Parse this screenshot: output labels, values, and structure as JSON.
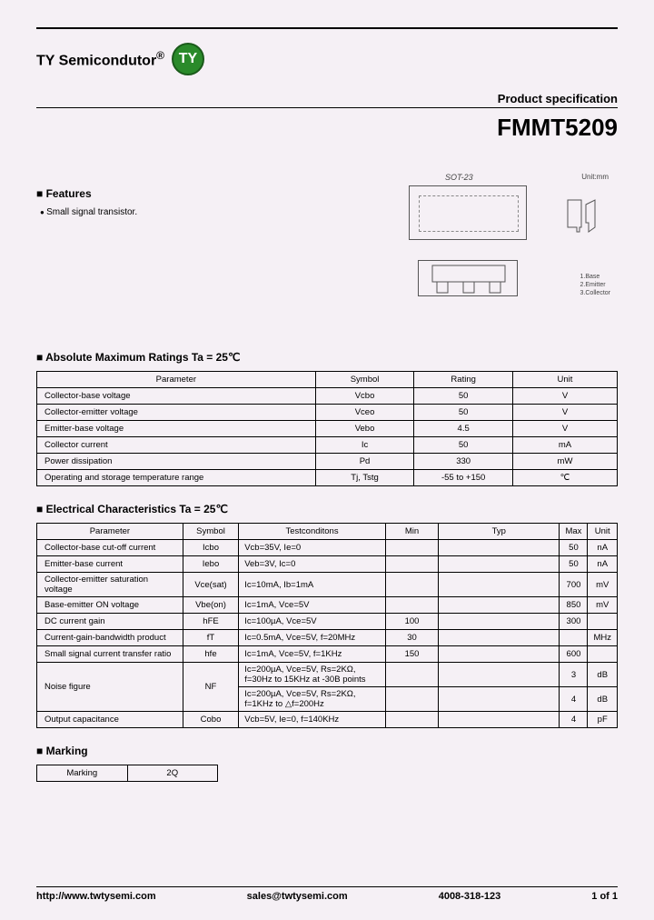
{
  "company": {
    "name": "TY Semicondutor",
    "reg": "®",
    "logo_text": "TY",
    "logo_bg": "#2a8a2a"
  },
  "spec_label": "Product specification",
  "part_number": "FMMT5209",
  "features": {
    "heading": "Features",
    "items": [
      "Small signal transistor."
    ]
  },
  "package": {
    "name": "SOT-23",
    "unit_label": "Unit:mm",
    "pins": [
      "1.Base",
      "2.Emitter",
      "3.Collector"
    ]
  },
  "abs_max": {
    "heading": "Absolute Maximum Ratings Ta = 25℃",
    "columns": [
      "Parameter",
      "Symbol",
      "Rating",
      "Unit"
    ],
    "rows": [
      [
        "Collector-base voltage",
        "Vcbo",
        "50",
        "V"
      ],
      [
        "Collector-emitter voltage",
        "Vceo",
        "50",
        "V"
      ],
      [
        "Emitter-base voltage",
        "Vebo",
        "4.5",
        "V"
      ],
      [
        "Collector current",
        "Ic",
        "50",
        "mA"
      ],
      [
        "Power dissipation",
        "Pd",
        "330",
        "mW"
      ],
      [
        "Operating and storage temperature range",
        "Tj, Tstg",
        "-55 to +150",
        "℃"
      ]
    ]
  },
  "elec": {
    "heading": "Electrical Characteristics Ta = 25℃",
    "columns": [
      "Parameter",
      "Symbol",
      "Testconditons",
      "Min",
      "Typ",
      "Max",
      "Unit"
    ],
    "rows": [
      {
        "p": "Collector-base cut-off current",
        "s": "Icbo",
        "t": "Vcb=35V, Ie=0",
        "min": "",
        "typ": "",
        "max": "50",
        "u": "nA",
        "rowspan": 1
      },
      {
        "p": "Emitter-base current",
        "s": "Iebo",
        "t": "Veb=3V, Ic=0",
        "min": "",
        "typ": "",
        "max": "50",
        "u": "nA",
        "rowspan": 1
      },
      {
        "p": "Collector-emitter saturation voltage",
        "s": "Vce(sat)",
        "t": "Ic=10mA, Ib=1mA",
        "min": "",
        "typ": "",
        "max": "700",
        "u": "mV",
        "rowspan": 1
      },
      {
        "p": "Base-emitter ON voltage",
        "s": "Vbe(on)",
        "t": "Ic=1mA, Vce=5V",
        "min": "",
        "typ": "",
        "max": "850",
        "u": "mV",
        "rowspan": 1
      },
      {
        "p": "DC current gain",
        "s": "hFE",
        "t": "Ic=100µA, Vce=5V",
        "min": "100",
        "typ": "",
        "max": "300",
        "u": "",
        "rowspan": 1
      },
      {
        "p": "Current-gain-bandwidth product",
        "s": "fT",
        "t": "Ic=0.5mA, Vce=5V, f=20MHz",
        "min": "30",
        "typ": "",
        "max": "",
        "u": "MHz",
        "rowspan": 1
      },
      {
        "p": "Small signal current transfer ratio",
        "s": "hfe",
        "t": "Ic=1mA, Vce=5V, f=1KHz",
        "min": "150",
        "typ": "",
        "max": "600",
        "u": "",
        "rowspan": 1
      }
    ],
    "noise": {
      "p": "Noise figure",
      "s": "NF",
      "t1": "Ic=200µA, Vce=5V, Rs=2KΩ, f=30Hz to 15KHz at -30B points",
      "max1": "3",
      "u1": "dB",
      "t2": "Ic=200µA, Vce=5V, Rs=2KΩ, f=1KHz to △f=200Hz",
      "max2": "4",
      "u2": "dB"
    },
    "output_cap": {
      "p": "Output capacitance",
      "s": "Cobo",
      "t": "Vcb=5V, Ie=0, f=140KHz",
      "min": "",
      "typ": "",
      "max": "4",
      "u": "pF"
    }
  },
  "marking": {
    "heading": "Marking",
    "label": "Marking",
    "value": "2Q"
  },
  "footer": {
    "url": "http://www.twtysemi.com",
    "email": "sales@twtysemi.com",
    "phone": "4008-318-123",
    "page": "1 of 1"
  }
}
